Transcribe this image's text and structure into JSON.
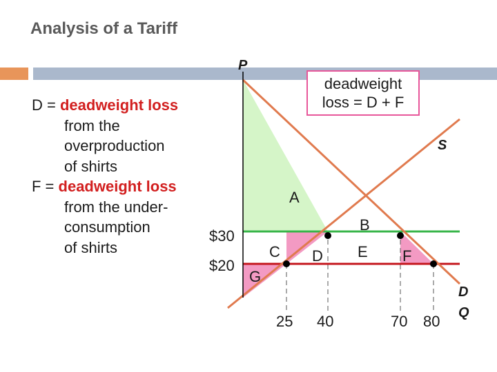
{
  "slide": {
    "title": "Analysis of a Tariff"
  },
  "notes": {
    "d_prefix": "D = ",
    "d_term": "deadweight loss",
    "d_line2": "from the",
    "d_line3": "overproduction",
    "d_line4": "of shirts",
    "f_prefix": "F = ",
    "f_term": "deadweight loss",
    "f_line2": "from the under-",
    "f_line3": "consumption",
    "f_line4": "of shirts"
  },
  "callout": {
    "line1": "deadweight",
    "line2": "loss = D + F"
  },
  "diagram": {
    "axis_y_label": "P",
    "supply_label": "S",
    "demand_label": "D",
    "quantity_label": "Q",
    "price_high": "$30",
    "price_low": "$20",
    "area_labels": {
      "a": "A",
      "b": "B",
      "c": "C",
      "d": "D",
      "e": "E",
      "f": "F",
      "g": "G"
    },
    "quantity_ticks": [
      "25",
      "40",
      "70",
      "80"
    ],
    "colors": {
      "supply": "#e07a4e",
      "world_price_with_tariff": "#38b54a",
      "world_price": "#c4161c",
      "consumer_surplus": "#d5f5c8",
      "deadweight_loss": "#f39ac3",
      "callout_border": "#e8569a"
    }
  }
}
